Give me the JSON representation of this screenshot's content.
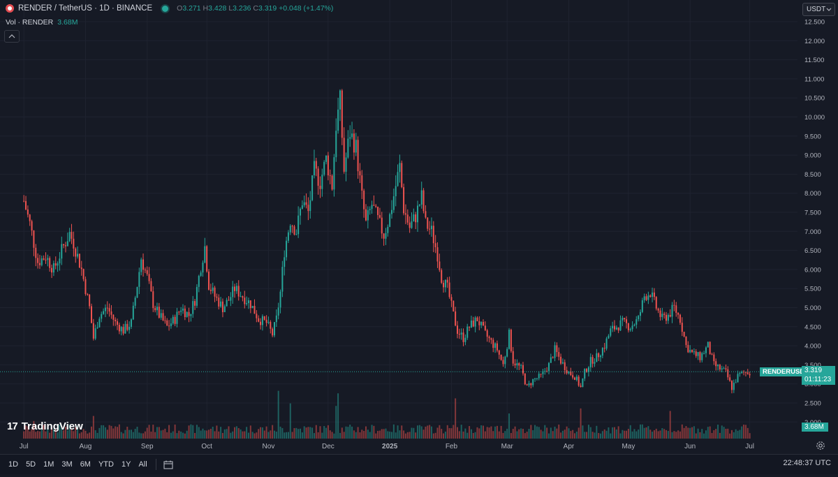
{
  "header": {
    "symbol": "RENDER / TetherUS · 1D · BINANCE",
    "ohlc": {
      "o_label": "O",
      "o": "3.271",
      "h_label": "H",
      "h": "3.428",
      "l_label": "L",
      "l": "3.236",
      "c_label": "C",
      "c": "3.319",
      "change": "+0.048 (+1.47%)"
    },
    "volume_label": "Vol · RENDER",
    "volume_value": "3.68M",
    "currency": "USDT",
    "live_dot_color": "#26a69a",
    "logo_icon": "tradingview-logo-icon",
    "logo_mark": "17",
    "logo_text": "TradingView"
  },
  "price_label": {
    "symbol": "RENDERUSDT",
    "price": "3.319",
    "countdown": "01:11:23",
    "volume": "3.68M"
  },
  "bottom_bar": {
    "ranges": [
      "1D",
      "5D",
      "1M",
      "3M",
      "6M",
      "YTD",
      "1Y",
      "All"
    ],
    "clock": "22:48:37 UTC"
  },
  "colors": {
    "up": "#26a69a",
    "down": "#ef5350",
    "background": "#161a25",
    "grid": "#1f2330",
    "text": "#b2b5be"
  },
  "chart_data": {
    "type": "candlestick",
    "y_ticks": [
      "12.500",
      "12.000",
      "11.500",
      "11.000",
      "10.500",
      "10.000",
      "9.500",
      "9.000",
      "8.500",
      "8.000",
      "7.500",
      "7.000",
      "6.500",
      "6.000",
      "5.500",
      "5.000",
      "4.500",
      "4.000",
      "3.500",
      "3.000",
      "2.500",
      "2.000"
    ],
    "ylim": [
      1.85,
      12.65
    ],
    "x_ticks": [
      "Jul",
      "Aug",
      "Sep",
      "Oct",
      "Nov",
      "Dec",
      "2025",
      "Feb",
      "Mar",
      "Apr",
      "May",
      "Jun",
      "Jul"
    ],
    "x_ticks_bold": [
      false,
      false,
      false,
      false,
      false,
      false,
      true,
      false,
      false,
      false,
      false,
      false,
      false
    ],
    "grid": true,
    "last_price": 3.319,
    "price_series": [
      {
        "d": "2024-07-01",
        "c": 7.8
      },
      {
        "d": "2024-07-04",
        "c": 7.2
      },
      {
        "d": "2024-07-08",
        "c": 6.2
      },
      {
        "d": "2024-07-12",
        "c": 6.35
      },
      {
        "d": "2024-07-16",
        "c": 6.0
      },
      {
        "d": "2024-07-20",
        "c": 6.5
      },
      {
        "d": "2024-07-24",
        "c": 6.95
      },
      {
        "d": "2024-07-26",
        "c": 6.7
      },
      {
        "d": "2024-07-30",
        "c": 6.0
      },
      {
        "d": "2024-08-03",
        "c": 5.0
      },
      {
        "d": "2024-08-05",
        "c": 4.2
      },
      {
        "d": "2024-08-08",
        "c": 4.8
      },
      {
        "d": "2024-08-12",
        "c": 5.0
      },
      {
        "d": "2024-08-16",
        "c": 4.6
      },
      {
        "d": "2024-08-20",
        "c": 4.4
      },
      {
        "d": "2024-08-24",
        "c": 4.6
      },
      {
        "d": "2024-08-27",
        "c": 5.6
      },
      {
        "d": "2024-08-29",
        "c": 6.3
      },
      {
        "d": "2024-09-01",
        "c": 5.8
      },
      {
        "d": "2024-09-04",
        "c": 5.1
      },
      {
        "d": "2024-09-07",
        "c": 4.8
      },
      {
        "d": "2024-09-11",
        "c": 4.5
      },
      {
        "d": "2024-09-15",
        "c": 4.7
      },
      {
        "d": "2024-09-18",
        "c": 5.0
      },
      {
        "d": "2024-09-22",
        "c": 4.8
      },
      {
        "d": "2024-09-25",
        "c": 5.2
      },
      {
        "d": "2024-09-28",
        "c": 6.1
      },
      {
        "d": "2024-09-30",
        "c": 6.6
      },
      {
        "d": "2024-10-02",
        "c": 5.6
      },
      {
        "d": "2024-10-05",
        "c": 5.3
      },
      {
        "d": "2024-10-09",
        "c": 5.0
      },
      {
        "d": "2024-10-12",
        "c": 5.2
      },
      {
        "d": "2024-10-15",
        "c": 5.5
      },
      {
        "d": "2024-10-19",
        "c": 5.3
      },
      {
        "d": "2024-10-23",
        "c": 5.1
      },
      {
        "d": "2024-10-27",
        "c": 4.7
      },
      {
        "d": "2024-10-31",
        "c": 4.6
      },
      {
        "d": "2024-11-03",
        "c": 4.3
      },
      {
        "d": "2024-11-05",
        "c": 4.7
      },
      {
        "d": "2024-11-07",
        "c": 5.4
      },
      {
        "d": "2024-11-09",
        "c": 6.5
      },
      {
        "d": "2024-11-12",
        "c": 7.3
      },
      {
        "d": "2024-11-15",
        "c": 7.0
      },
      {
        "d": "2024-11-18",
        "c": 7.8
      },
      {
        "d": "2024-11-21",
        "c": 7.5
      },
      {
        "d": "2024-11-24",
        "c": 8.6
      },
      {
        "d": "2024-11-27",
        "c": 8.3
      },
      {
        "d": "2024-11-30",
        "c": 8.9
      },
      {
        "d": "2024-12-03",
        "c": 8.2
      },
      {
        "d": "2024-12-05",
        "c": 9.8
      },
      {
        "d": "2024-12-07",
        "c": 10.4
      },
      {
        "d": "2024-12-09",
        "c": 8.6
      },
      {
        "d": "2024-12-12",
        "c": 9.6
      },
      {
        "d": "2024-12-15",
        "c": 9.2
      },
      {
        "d": "2024-12-18",
        "c": 7.9
      },
      {
        "d": "2024-12-20",
        "c": 7.2
      },
      {
        "d": "2024-12-23",
        "c": 7.7
      },
      {
        "d": "2024-12-26",
        "c": 7.3
      },
      {
        "d": "2024-12-29",
        "c": 6.9
      },
      {
        "d": "2025-01-01",
        "c": 7.4
      },
      {
        "d": "2025-01-04",
        "c": 8.2
      },
      {
        "d": "2025-01-06",
        "c": 8.7
      },
      {
        "d": "2025-01-08",
        "c": 7.6
      },
      {
        "d": "2025-01-11",
        "c": 7.1
      },
      {
        "d": "2025-01-14",
        "c": 7.4
      },
      {
        "d": "2025-01-17",
        "c": 7.9
      },
      {
        "d": "2025-01-19",
        "c": 7.2
      },
      {
        "d": "2025-01-22",
        "c": 7.0
      },
      {
        "d": "2025-01-25",
        "c": 6.4
      },
      {
        "d": "2025-01-27",
        "c": 5.8
      },
      {
        "d": "2025-01-30",
        "c": 5.5
      },
      {
        "d": "2025-02-02",
        "c": 4.8
      },
      {
        "d": "2025-02-04",
        "c": 4.4
      },
      {
        "d": "2025-02-07",
        "c": 4.2
      },
      {
        "d": "2025-02-10",
        "c": 4.5
      },
      {
        "d": "2025-02-14",
        "c": 4.7
      },
      {
        "d": "2025-02-18",
        "c": 4.3
      },
      {
        "d": "2025-02-21",
        "c": 4.1
      },
      {
        "d": "2025-02-24",
        "c": 3.9
      },
      {
        "d": "2025-02-27",
        "c": 3.5
      },
      {
        "d": "2025-03-02",
        "c": 4.3
      },
      {
        "d": "2025-03-04",
        "c": 3.6
      },
      {
        "d": "2025-03-08",
        "c": 3.4
      },
      {
        "d": "2025-03-11",
        "c": 2.9
      },
      {
        "d": "2025-03-14",
        "c": 3.1
      },
      {
        "d": "2025-03-18",
        "c": 3.2
      },
      {
        "d": "2025-03-22",
        "c": 3.5
      },
      {
        "d": "2025-03-25",
        "c": 3.9
      },
      {
        "d": "2025-03-28",
        "c": 3.6
      },
      {
        "d": "2025-04-01",
        "c": 3.3
      },
      {
        "d": "2025-04-04",
        "c": 3.2
      },
      {
        "d": "2025-04-07",
        "c": 2.9
      },
      {
        "d": "2025-04-09",
        "c": 3.3
      },
      {
        "d": "2025-04-12",
        "c": 3.6
      },
      {
        "d": "2025-04-15",
        "c": 3.7
      },
      {
        "d": "2025-04-19",
        "c": 4.0
      },
      {
        "d": "2025-04-22",
        "c": 4.4
      },
      {
        "d": "2025-04-25",
        "c": 4.5
      },
      {
        "d": "2025-04-28",
        "c": 4.6
      },
      {
        "d": "2025-05-02",
        "c": 4.5
      },
      {
        "d": "2025-05-06",
        "c": 4.7
      },
      {
        "d": "2025-05-09",
        "c": 5.3
      },
      {
        "d": "2025-05-12",
        "c": 5.4
      },
      {
        "d": "2025-05-15",
        "c": 5.0
      },
      {
        "d": "2025-05-18",
        "c": 4.7
      },
      {
        "d": "2025-05-21",
        "c": 4.8
      },
      {
        "d": "2025-05-24",
        "c": 5.0
      },
      {
        "d": "2025-05-27",
        "c": 4.7
      },
      {
        "d": "2025-05-30",
        "c": 4.0
      },
      {
        "d": "2025-06-02",
        "c": 3.8
      },
      {
        "d": "2025-06-06",
        "c": 3.7
      },
      {
        "d": "2025-06-10",
        "c": 4.0
      },
      {
        "d": "2025-06-13",
        "c": 3.5
      },
      {
        "d": "2025-06-16",
        "c": 3.4
      },
      {
        "d": "2025-06-19",
        "c": 3.3
      },
      {
        "d": "2025-06-22",
        "c": 2.9
      },
      {
        "d": "2025-06-25",
        "c": 3.2
      },
      {
        "d": "2025-06-28",
        "c": 3.3
      },
      {
        "d": "2025-07-01",
        "c": 3.319
      }
    ],
    "volume_spikes": [
      {
        "d": "2024-07-06",
        "v": 0.7
      },
      {
        "d": "2024-08-05",
        "v": 0.9
      },
      {
        "d": "2024-11-06",
        "v": 1.9
      },
      {
        "d": "2024-11-12",
        "v": 1.4
      },
      {
        "d": "2024-12-05",
        "v": 1.3
      },
      {
        "d": "2024-12-06",
        "v": 1.8
      },
      {
        "d": "2025-02-03",
        "v": 1.6
      },
      {
        "d": "2025-03-02",
        "v": 1.0
      },
      {
        "d": "2025-04-07",
        "v": 1.2
      },
      {
        "d": "2025-05-22",
        "v": 1.1
      }
    ]
  }
}
